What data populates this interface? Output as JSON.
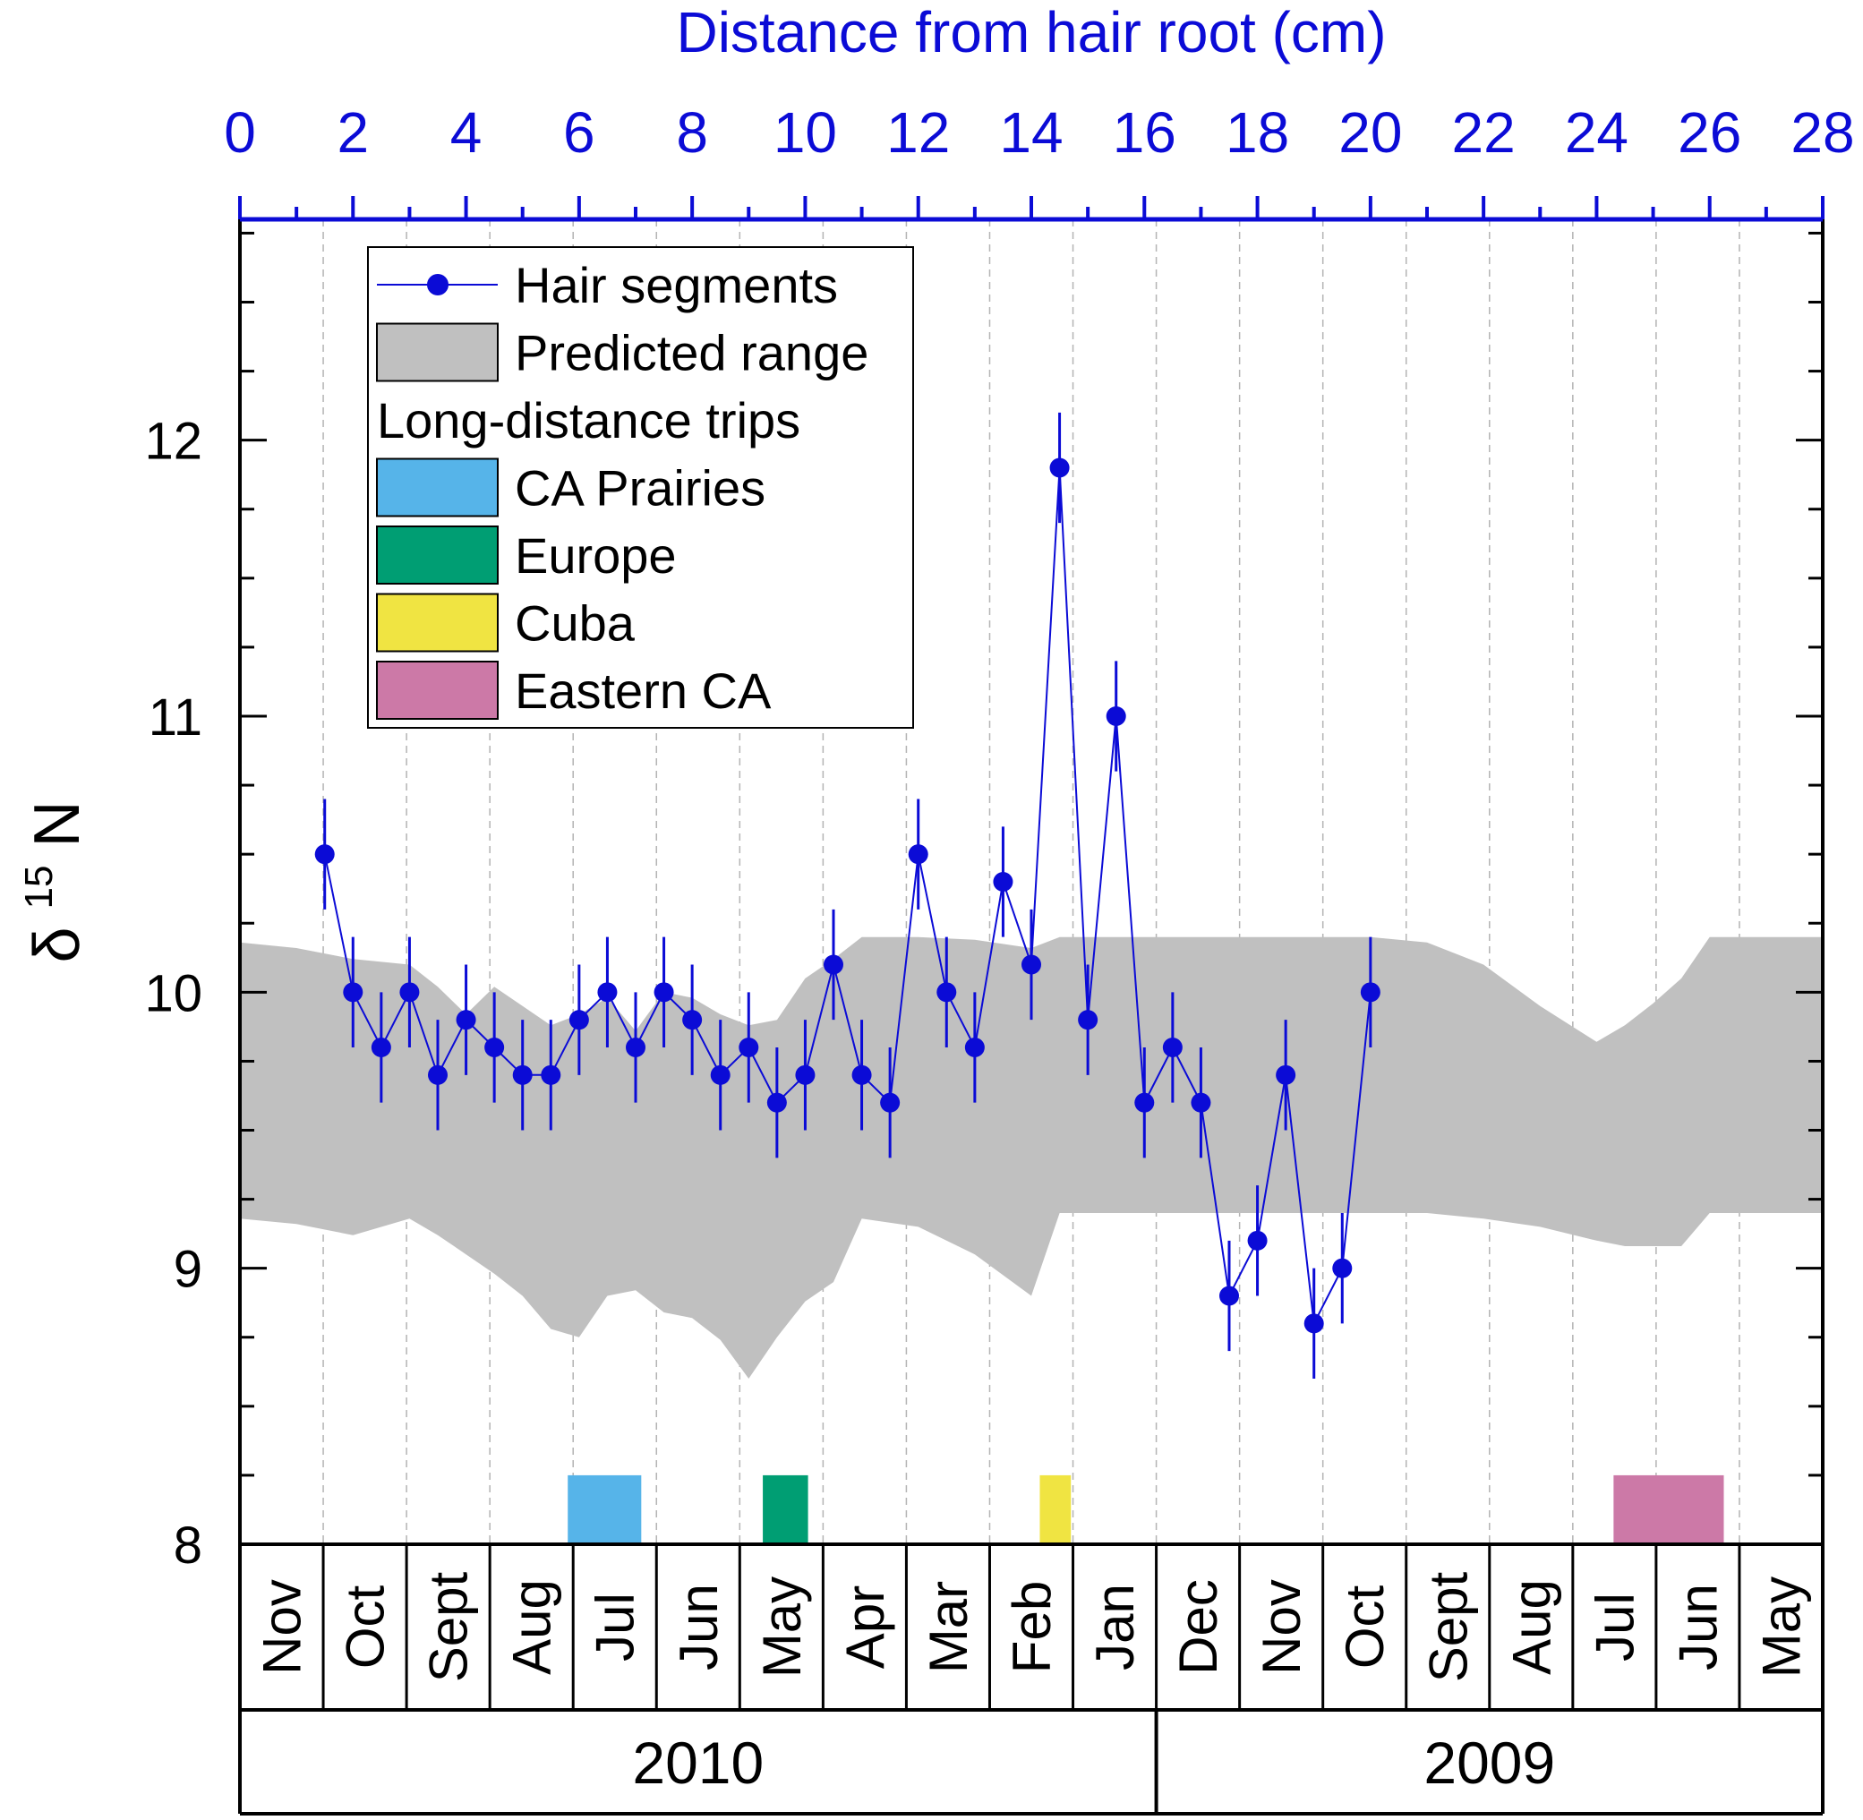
{
  "chart_data": {
    "type": "line",
    "title": "",
    "top_axis": {
      "label": "Distance from hair root (cm)",
      "xlim": [
        0,
        28
      ],
      "ticks": [
        0,
        2,
        4,
        6,
        8,
        10,
        12,
        14,
        16,
        18,
        20,
        22,
        24,
        26,
        28
      ]
    },
    "y_axis": {
      "label_prefix": "δ",
      "label_superscript": "15",
      "label_suffix": "N",
      "ylim": [
        8,
        12.8
      ],
      "ticks": [
        8,
        9,
        10,
        11,
        12
      ]
    },
    "series": [
      {
        "name": "Hair segments",
        "color": "#0b0bd6",
        "x": [
          1.5,
          2.0,
          2.5,
          3.0,
          3.5,
          4.0,
          4.5,
          5.0,
          5.5,
          6.0,
          6.5,
          7.0,
          7.5,
          8.0,
          8.5,
          9.0,
          9.5,
          10.0,
          10.5,
          11.0,
          11.5,
          12.0,
          12.5,
          13.0,
          13.5,
          14.0,
          14.5,
          15.0,
          15.5,
          16.0,
          16.5,
          17.0,
          17.5,
          18.0,
          18.5,
          19.0,
          19.5,
          20.0
        ],
        "y": [
          10.5,
          10.0,
          9.8,
          10.0,
          9.7,
          9.9,
          9.8,
          9.7,
          9.7,
          9.9,
          10.0,
          9.8,
          10.0,
          9.9,
          9.7,
          9.8,
          9.6,
          9.7,
          10.1,
          9.7,
          9.6,
          10.5,
          10.0,
          9.8,
          10.4,
          10.1,
          11.9,
          9.9,
          11.0,
          9.6,
          9.8,
          9.6,
          8.9,
          9.1,
          9.7,
          8.8,
          9.0,
          10.0
        ],
        "error": 0.2
      }
    ],
    "predicted_range": {
      "name": "Predicted range",
      "color": "#c0c0c0",
      "x": [
        0,
        1,
        2,
        3,
        3.5,
        4,
        4.5,
        5,
        5.5,
        6,
        6.5,
        7,
        7.5,
        8,
        8.5,
        9,
        9.5,
        10,
        10.5,
        11,
        12,
        13,
        14,
        14.5,
        15,
        16,
        17,
        18,
        19,
        20,
        21,
        22,
        23,
        24,
        24.5,
        25,
        25.5,
        26,
        27,
        28
      ],
      "upper": [
        10.18,
        10.16,
        10.12,
        10.1,
        10.02,
        9.92,
        10.02,
        9.95,
        9.88,
        9.92,
        9.98,
        9.86,
        10.0,
        9.98,
        9.92,
        9.88,
        9.9,
        10.05,
        10.12,
        10.2,
        10.2,
        10.19,
        10.16,
        10.2,
        10.2,
        10.2,
        10.2,
        10.2,
        10.2,
        10.2,
        10.18,
        10.1,
        9.95,
        9.82,
        9.88,
        9.96,
        10.05,
        10.2,
        10.2,
        10.2
      ],
      "lower": [
        9.18,
        9.16,
        9.12,
        9.18,
        9.12,
        9.05,
        8.98,
        8.9,
        8.78,
        8.75,
        8.9,
        8.92,
        8.84,
        8.82,
        8.74,
        8.6,
        8.75,
        8.88,
        8.95,
        9.18,
        9.15,
        9.05,
        8.9,
        9.2,
        9.2,
        9.2,
        9.2,
        9.2,
        9.2,
        9.2,
        9.2,
        9.18,
        9.15,
        9.1,
        9.08,
        9.08,
        9.08,
        9.2,
        9.2,
        9.2
      ]
    },
    "trips": {
      "heading": "Long-distance trips",
      "items": [
        {
          "name": "CA Prairies",
          "color": "#56b4e9",
          "x_start": 5.8,
          "x_end": 7.1
        },
        {
          "name": "Europe",
          "color": "#009e73",
          "x_start": 9.25,
          "x_end": 10.05
        },
        {
          "name": "Cuba",
          "color": "#f0e442",
          "x_start": 14.15,
          "x_end": 14.7
        },
        {
          "name": "Eastern CA",
          "color": "#cc79a7",
          "x_start": 24.3,
          "x_end": 26.25
        }
      ],
      "bar_height": 0.25
    },
    "legend": {
      "position": "top-left",
      "series_label": "Hair segments",
      "range_label": "Predicted range"
    },
    "months": [
      "Nov",
      "Oct",
      "Sept",
      "Aug",
      "Jul",
      "Jun",
      "May",
      "Apr",
      "Mar",
      "Feb",
      "Jan",
      "Dec",
      "Nov",
      "Oct",
      "Sept",
      "Aug",
      "Jul",
      "Jun",
      "May"
    ],
    "years": [
      {
        "label": "2010",
        "month_start": 0,
        "month_end": 11
      },
      {
        "label": "2009",
        "month_start": 11,
        "month_end": 19
      }
    ]
  }
}
